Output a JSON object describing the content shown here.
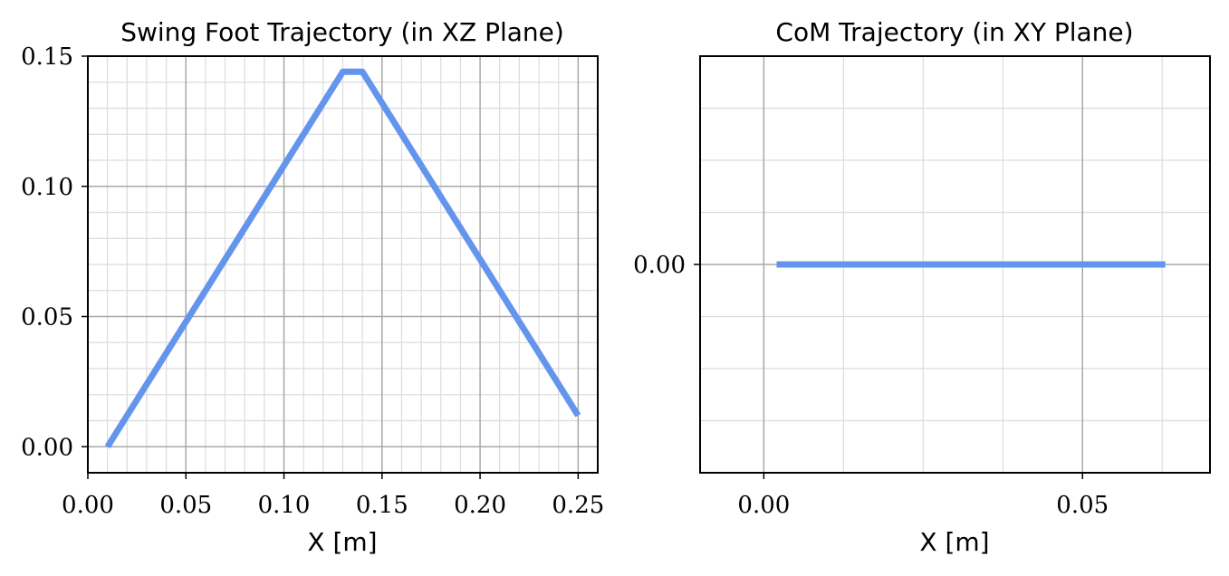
{
  "chart_data": [
    {
      "type": "line",
      "title": "Swing Foot Trajectory (in XZ Plane)",
      "xlabel": "X [m]",
      "ylabel": "",
      "xlim": [
        0.0,
        0.26
      ],
      "ylim": [
        -0.01,
        0.15
      ],
      "xticks": [
        "0.00",
        "0.05",
        "0.10",
        "0.15",
        "0.20",
        "0.25"
      ],
      "yticks": [
        "0.00",
        "0.05",
        "0.10",
        "0.15"
      ],
      "grid": true,
      "color": "#6495ED",
      "series": [
        {
          "x": [
            0.01,
            0.13,
            0.14,
            0.25
          ],
          "y": [
            0.0,
            0.144,
            0.144,
            0.012
          ]
        }
      ]
    },
    {
      "type": "line",
      "title": "CoM Trajectory (in XY Plane)",
      "xlabel": "X [m]",
      "ylabel": "",
      "xlim": [
        -0.01,
        0.07
      ],
      "ylim": [
        -0.08,
        0.08
      ],
      "xticks": [
        "0.00",
        "0.05"
      ],
      "yticks": [
        "0.00"
      ],
      "grid": true,
      "color": "#6495ED",
      "series": [
        {
          "x": [
            0.002,
            0.063
          ],
          "y": [
            0.0,
            0.0
          ]
        }
      ]
    }
  ]
}
